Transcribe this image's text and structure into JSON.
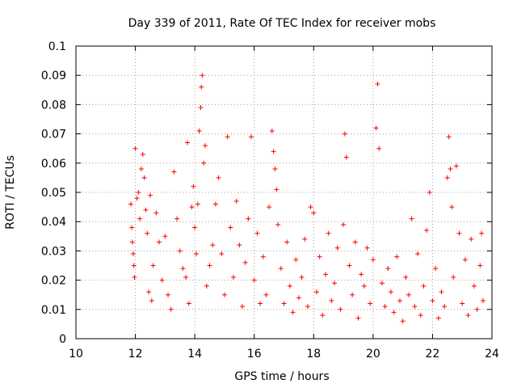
{
  "chart_data": {
    "type": "scatter",
    "title": "Day 339 of 2011, Rate Of TEC Index for receiver mobs",
    "xlabel": "GPS time / hours",
    "ylabel": "ROTI / TECUs",
    "xlim": [
      10,
      24
    ],
    "ylim": [
      0,
      0.1
    ],
    "x_ticks": [
      10,
      12,
      14,
      16,
      18,
      20,
      22,
      24
    ],
    "x_tick_labels": [
      "10",
      "12",
      "14",
      "16",
      "18",
      "20",
      "22",
      "24"
    ],
    "y_ticks": [
      0,
      0.01,
      0.02,
      0.03,
      0.04,
      0.05,
      0.06,
      0.07,
      0.08,
      0.09,
      0.1
    ],
    "y_tick_labels": [
      "0",
      "0.01",
      "0.02",
      "0.03",
      "0.04",
      "0.05",
      "0.06",
      "0.07",
      "0.08",
      "0.09",
      "0.1"
    ],
    "grid": true,
    "marker": "+",
    "color": "#ff0000",
    "series": [
      {
        "name": "ROTI",
        "points": [
          [
            11.85,
            0.046
          ],
          [
            11.88,
            0.038
          ],
          [
            11.9,
            0.033
          ],
          [
            11.93,
            0.029
          ],
          [
            11.95,
            0.025
          ],
          [
            11.97,
            0.021
          ],
          [
            12.0,
            0.065
          ],
          [
            12.05,
            0.048
          ],
          [
            12.1,
            0.05
          ],
          [
            12.15,
            0.041
          ],
          [
            12.2,
            0.058
          ],
          [
            12.25,
            0.063
          ],
          [
            12.3,
            0.055
          ],
          [
            12.35,
            0.044
          ],
          [
            12.4,
            0.036
          ],
          [
            12.45,
            0.016
          ],
          [
            12.5,
            0.049
          ],
          [
            12.55,
            0.013
          ],
          [
            12.6,
            0.025
          ],
          [
            12.7,
            0.043
          ],
          [
            12.8,
            0.033
          ],
          [
            12.9,
            0.02
          ],
          [
            13.0,
            0.035
          ],
          [
            13.1,
            0.015
          ],
          [
            13.2,
            0.01
          ],
          [
            13.3,
            0.057
          ],
          [
            13.4,
            0.041
          ],
          [
            13.5,
            0.03
          ],
          [
            13.6,
            0.024
          ],
          [
            13.7,
            0.021
          ],
          [
            13.75,
            0.067
          ],
          [
            13.8,
            0.012
          ],
          [
            13.9,
            0.045
          ],
          [
            13.95,
            0.052
          ],
          [
            14.0,
            0.038
          ],
          [
            14.05,
            0.029
          ],
          [
            14.1,
            0.046
          ],
          [
            14.15,
            0.071
          ],
          [
            14.2,
            0.079
          ],
          [
            14.22,
            0.086
          ],
          [
            14.25,
            0.09
          ],
          [
            14.3,
            0.06
          ],
          [
            14.35,
            0.066
          ],
          [
            14.4,
            0.018
          ],
          [
            14.5,
            0.025
          ],
          [
            14.6,
            0.032
          ],
          [
            14.7,
            0.046
          ],
          [
            14.8,
            0.055
          ],
          [
            14.9,
            0.029
          ],
          [
            15.0,
            0.015
          ],
          [
            15.1,
            0.069
          ],
          [
            15.2,
            0.038
          ],
          [
            15.3,
            0.021
          ],
          [
            15.4,
            0.047
          ],
          [
            15.5,
            0.032
          ],
          [
            15.6,
            0.011
          ],
          [
            15.7,
            0.026
          ],
          [
            15.8,
            0.041
          ],
          [
            15.9,
            0.069
          ],
          [
            16.0,
            0.02
          ],
          [
            16.1,
            0.036
          ],
          [
            16.2,
            0.012
          ],
          [
            16.3,
            0.028
          ],
          [
            16.4,
            0.015
          ],
          [
            16.5,
            0.045
          ],
          [
            16.6,
            0.071
          ],
          [
            16.65,
            0.064
          ],
          [
            16.7,
            0.058
          ],
          [
            16.75,
            0.051
          ],
          [
            16.8,
            0.039
          ],
          [
            16.9,
            0.024
          ],
          [
            17.0,
            0.012
          ],
          [
            17.1,
            0.033
          ],
          [
            17.2,
            0.018
          ],
          [
            17.3,
            0.009
          ],
          [
            17.4,
            0.027
          ],
          [
            17.5,
            0.014
          ],
          [
            17.6,
            0.021
          ],
          [
            17.7,
            0.034
          ],
          [
            17.8,
            0.011
          ],
          [
            17.9,
            0.045
          ],
          [
            18.0,
            0.043
          ],
          [
            18.1,
            0.016
          ],
          [
            18.2,
            0.028
          ],
          [
            18.3,
            0.008
          ],
          [
            18.4,
            0.022
          ],
          [
            18.5,
            0.036
          ],
          [
            18.6,
            0.013
          ],
          [
            18.7,
            0.019
          ],
          [
            18.8,
            0.031
          ],
          [
            18.9,
            0.01
          ],
          [
            19.0,
            0.039
          ],
          [
            19.05,
            0.07
          ],
          [
            19.1,
            0.062
          ],
          [
            19.2,
            0.025
          ],
          [
            19.3,
            0.015
          ],
          [
            19.4,
            0.033
          ],
          [
            19.5,
            0.007
          ],
          [
            19.6,
            0.022
          ],
          [
            19.7,
            0.018
          ],
          [
            19.8,
            0.031
          ],
          [
            19.9,
            0.012
          ],
          [
            20.0,
            0.027
          ],
          [
            20.1,
            0.072
          ],
          [
            20.15,
            0.087
          ],
          [
            20.2,
            0.065
          ],
          [
            20.3,
            0.019
          ],
          [
            20.4,
            0.011
          ],
          [
            20.5,
            0.024
          ],
          [
            20.6,
            0.016
          ],
          [
            20.7,
            0.009
          ],
          [
            20.8,
            0.028
          ],
          [
            20.9,
            0.013
          ],
          [
            21.0,
            0.006
          ],
          [
            21.1,
            0.021
          ],
          [
            21.2,
            0.015
          ],
          [
            21.3,
            0.041
          ],
          [
            21.4,
            0.011
          ],
          [
            21.5,
            0.029
          ],
          [
            21.6,
            0.008
          ],
          [
            21.7,
            0.018
          ],
          [
            21.8,
            0.037
          ],
          [
            21.9,
            0.05
          ],
          [
            22.0,
            0.013
          ],
          [
            22.1,
            0.024
          ],
          [
            22.2,
            0.007
          ],
          [
            22.3,
            0.016
          ],
          [
            22.4,
            0.011
          ],
          [
            22.5,
            0.055
          ],
          [
            22.55,
            0.069
          ],
          [
            22.6,
            0.058
          ],
          [
            22.65,
            0.045
          ],
          [
            22.7,
            0.021
          ],
          [
            22.8,
            0.059
          ],
          [
            22.9,
            0.036
          ],
          [
            23.0,
            0.012
          ],
          [
            23.1,
            0.027
          ],
          [
            23.2,
            0.008
          ],
          [
            23.3,
            0.034
          ],
          [
            23.4,
            0.018
          ],
          [
            23.5,
            0.01
          ],
          [
            23.6,
            0.025
          ],
          [
            23.65,
            0.036
          ],
          [
            23.7,
            0.013
          ]
        ]
      }
    ]
  }
}
